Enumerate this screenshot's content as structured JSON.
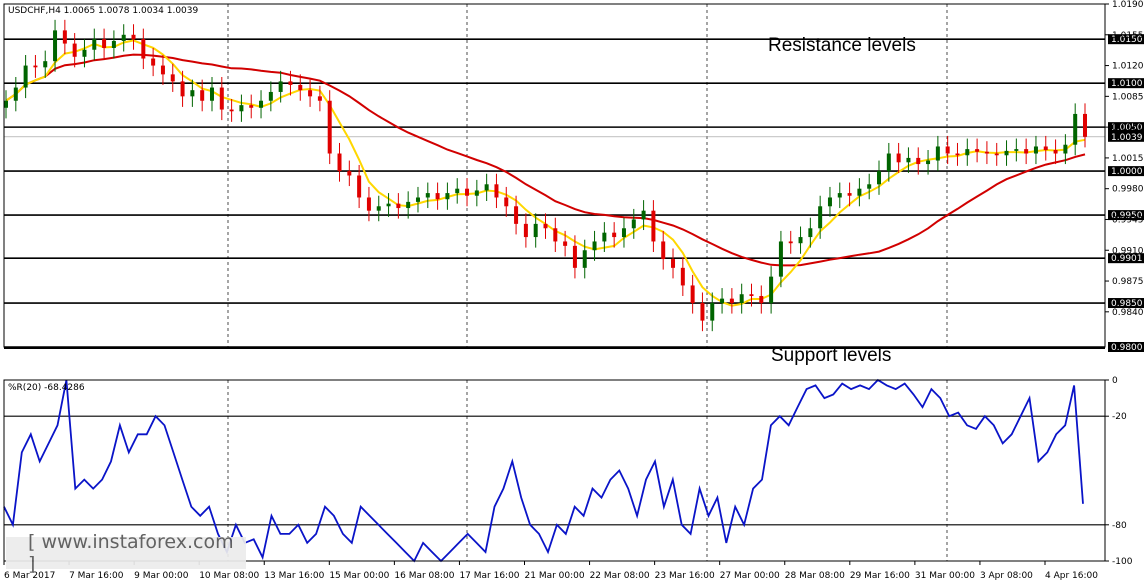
{
  "window": {
    "title": "USDCHF,H4 1.0065 1.0078 1.0034 1.0039",
    "symbol": "USDCHF,H4",
    "ohlc": {
      "open": "1.0065",
      "high": "1.0078",
      "low": "1.0034",
      "close": "1.0039"
    }
  },
  "indicator": {
    "label": "%R(20) -68.4286"
  },
  "annotations": {
    "resistance": "Resistance levels",
    "support": "Support levels"
  },
  "watermark": "[ www.instaforex.com ]",
  "colors": {
    "bull": "#006400",
    "bear": "#e00000",
    "ma_fast": "#ffd700",
    "ma_slow": "#d10000",
    "wpr": "#0a14c8",
    "level_tag_bg": "#000000"
  },
  "chart_data": [
    {
      "type": "candlestick",
      "title": "USDCHF,H4",
      "ylim": [
        0.98,
        1.019
      ],
      "price_ticks": [
        "1.0190",
        "1.0155",
        "1.0120",
        "1.0085",
        "1.0050",
        "1.0015",
        "0.9980",
        "0.9945",
        "0.9910",
        "0.9875",
        "0.9840"
      ],
      "levels": [
        "1.0150",
        "1.0100",
        "1.0050",
        "1.0000",
        "0.9950",
        "0.9901",
        "0.9850",
        "0.9800"
      ],
      "current_price": "1.0039",
      "time_labels": [
        "6 Mar 2017",
        "7 Mar 16:00",
        "9 Mar 00:00",
        "10 Mar 08:00",
        "13 Mar 16:00",
        "15 Mar 00:00",
        "16 Mar 08:00",
        "17 Mar 16:00",
        "21 Mar 00:00",
        "22 Mar 08:00",
        "23 Mar 16:00",
        "27 Mar 00:00",
        "28 Mar 08:00",
        "29 Mar 16:00",
        "31 Mar 00:00",
        "3 Apr 08:00",
        "4 Apr 16:00"
      ],
      "ohlc_close_path": [
        1.008,
        1.0095,
        1.012,
        1.0118,
        1.0125,
        1.016,
        1.0145,
        1.013,
        1.0138,
        1.015,
        1.014,
        1.0148,
        1.0155,
        1.015,
        1.0128,
        1.012,
        1.011,
        1.0102,
        1.0085,
        1.0092,
        1.008,
        1.0095,
        1.007,
        1.0068,
        1.0075,
        1.0072,
        1.008,
        1.009,
        1.0102,
        1.0098,
        1.0092,
        1.0085,
        1.008,
        1.002,
        1.0,
        0.9995,
        0.997,
        0.9955,
        0.996,
        0.9963,
        0.9958,
        0.9965,
        0.997,
        0.9975,
        0.9968,
        0.9975,
        0.998,
        0.9972,
        0.9978,
        0.9985,
        0.997,
        0.996,
        0.994,
        0.9925,
        0.994,
        0.9935,
        0.992,
        0.9915,
        0.989,
        0.991,
        0.992,
        0.993,
        0.9925,
        0.9935,
        0.9945,
        0.9955,
        0.992,
        0.99,
        0.989,
        0.987,
        0.985,
        0.983,
        0.985,
        0.9855,
        0.985,
        0.986,
        0.9858,
        0.985,
        0.988,
        0.992,
        0.9918,
        0.9925,
        0.9935,
        0.996,
        0.997,
        0.9975,
        0.9972,
        0.998,
        0.9985,
        1.0,
        1.002,
        1.001,
        1.0015,
        1.0008,
        1.0012,
        1.0028,
        1.002,
        1.0018,
        1.0025,
        1.0022,
        1.002,
        1.0018,
        1.0023,
        1.0025,
        1.002,
        1.0028,
        1.0024,
        1.002,
        1.003,
        1.0065,
        1.0039
      ],
      "series": [
        {
          "name": "MA fast",
          "color": "#ffd700"
        },
        {
          "name": "MA slow",
          "color": "#d10000"
        }
      ]
    },
    {
      "type": "line",
      "title": "%R(20) -68.4286",
      "ylim": [
        -100,
        0
      ],
      "yticks": [
        "0",
        "-20",
        "-80",
        "-100"
      ],
      "values": [
        -70,
        -80,
        -40,
        -30,
        -45,
        -35,
        -25,
        0,
        -60,
        -55,
        -60,
        -55,
        -45,
        -25,
        -40,
        -30,
        -30,
        -20,
        -25,
        -40,
        -55,
        -70,
        -75,
        -70,
        -85,
        -95,
        -80,
        -90,
        -88,
        -98,
        -75,
        -85,
        -85,
        -80,
        -90,
        -85,
        -70,
        -75,
        -85,
        -90,
        -70,
        -75,
        -80,
        -85,
        -90,
        -95,
        -100,
        -90,
        -95,
        -100,
        -95,
        -90,
        -85,
        -90,
        -95,
        -70,
        -60,
        -45,
        -65,
        -80,
        -85,
        -95,
        -80,
        -85,
        -70,
        -75,
        -60,
        -65,
        -55,
        -50,
        -60,
        -75,
        -55,
        -45,
        -70,
        -55,
        -80,
        -85,
        -60,
        -75,
        -65,
        -90,
        -70,
        -80,
        -60,
        -55,
        -25,
        -20,
        -25,
        -15,
        -5,
        -3,
        -10,
        -8,
        -2,
        -5,
        -3,
        -5,
        0,
        -3,
        -5,
        -2,
        -8,
        -15,
        -5,
        -10,
        -20,
        -18,
        -25,
        -27,
        -20,
        -25,
        -35,
        -30,
        -20,
        -10,
        -45,
        -40,
        -30,
        -25,
        -3,
        -68.4
      ]
    }
  ]
}
